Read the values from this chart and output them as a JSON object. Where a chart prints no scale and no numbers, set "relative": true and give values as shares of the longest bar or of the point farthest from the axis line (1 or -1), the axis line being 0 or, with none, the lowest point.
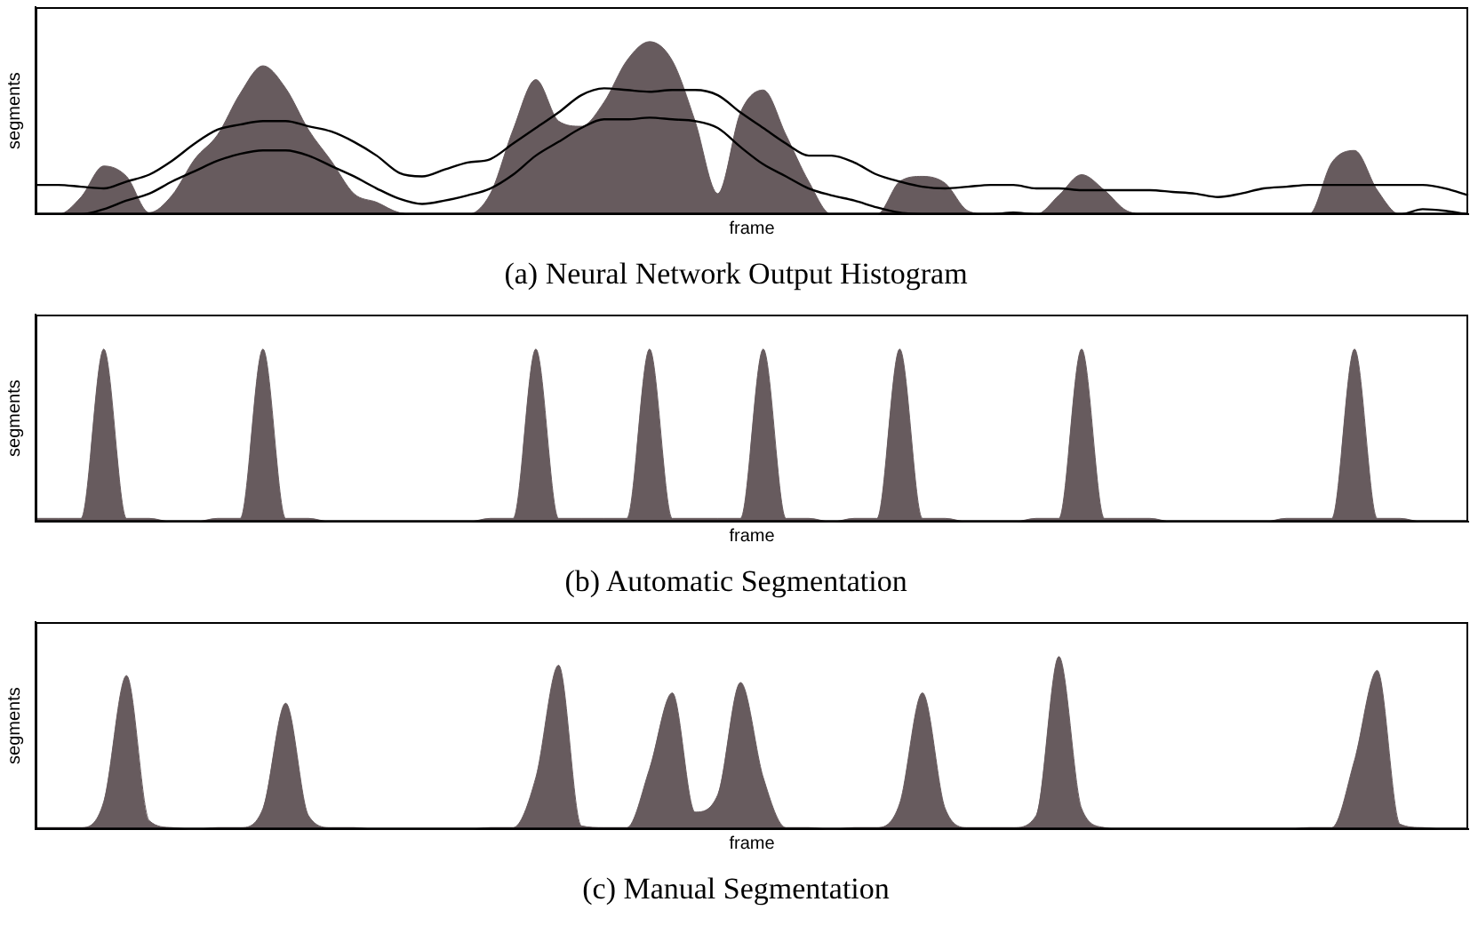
{
  "chart_data": [
    {
      "type": "area",
      "title": "(a) Neural Network Output Histogram",
      "xlabel": "frame",
      "ylabel": "segments",
      "relative": true,
      "tick_labels": false,
      "marker": "none",
      "categories": [
        null,
        null,
        null,
        null,
        null,
        null,
        null,
        null,
        null,
        null,
        null,
        null,
        null,
        null,
        null,
        null,
        null,
        null,
        null,
        null,
        null,
        null,
        null,
        null,
        null,
        null,
        null,
        null,
        null,
        null,
        null,
        null,
        null,
        null,
        null,
        null,
        null,
        null,
        null,
        null,
        null,
        null,
        null,
        null,
        null,
        null,
        null,
        null,
        null,
        null,
        null,
        null,
        null,
        null,
        null,
        null,
        null,
        null,
        null,
        null,
        null,
        null,
        null,
        null
      ],
      "series": [
        {
          "type": "area",
          "color": "#675b5e",
          "values": [
            0,
            0,
            0.1,
            0.28,
            0.22,
            0.01,
            0.11,
            0.32,
            0.46,
            0.7,
            0.86,
            0.73,
            0.49,
            0.31,
            0.12,
            0.07,
            0.01,
            0,
            0,
            0,
            0.12,
            0.49,
            0.78,
            0.54,
            0.51,
            0.65,
            0.89,
            1,
            0.89,
            0.54,
            0.12,
            0.59,
            0.72,
            0.46,
            0.19,
            0,
            0,
            0,
            0.19,
            0.22,
            0.18,
            0.02,
            0,
            0,
            0,
            0.11,
            0.23,
            0.14,
            0.02,
            0,
            0,
            0,
            0,
            0,
            0,
            0,
            0,
            0.3,
            0.37,
            0.14,
            0,
            0,
            0,
            0
          ]
        },
        {
          "type": "line",
          "color": "#000000",
          "values": [
            0.17,
            0.17,
            0.16,
            0.15,
            0.19,
            0.23,
            0.31,
            0.41,
            0.49,
            0.52,
            0.54,
            0.54,
            0.51,
            0.48,
            0.42,
            0.34,
            0.24,
            0.22,
            0.26,
            0.3,
            0.32,
            0.41,
            0.5,
            0.59,
            0.69,
            0.73,
            0.72,
            0.71,
            0.72,
            0.72,
            0.69,
            0.59,
            0.5,
            0.41,
            0.34,
            0.34,
            0.3,
            0.23,
            0.19,
            0.16,
            0.15,
            0.16,
            0.17,
            0.17,
            0.15,
            0.15,
            0.14,
            0.14,
            0.14,
            0.14,
            0.13,
            0.12,
            0.1,
            0.12,
            0.15,
            0.16,
            0.17,
            0.17,
            0.17,
            0.17,
            0.17,
            0.17,
            0.15,
            0.11
          ]
        },
        {
          "type": "line",
          "color": "#000000",
          "values": [
            0,
            0,
            0,
            0.03,
            0.08,
            0.12,
            0.19,
            0.25,
            0.31,
            0.35,
            0.37,
            0.37,
            0.34,
            0.28,
            0.22,
            0.15,
            0.09,
            0.06,
            0.08,
            0.11,
            0.15,
            0.23,
            0.34,
            0.42,
            0.5,
            0.55,
            0.55,
            0.56,
            0.55,
            0.54,
            0.5,
            0.39,
            0.29,
            0.22,
            0.15,
            0.11,
            0.08,
            0.04,
            0.01,
            0,
            0,
            0,
            0,
            0.01,
            0,
            0,
            0,
            0,
            0,
            0,
            0,
            0,
            0,
            0,
            0,
            0,
            0,
            0,
            0,
            0,
            0,
            0.03,
            0.02,
            0
          ]
        }
      ]
    },
    {
      "type": "area",
      "title": "(b) Automatic Segmentation",
      "xlabel": "frame",
      "ylabel": "segments",
      "relative": true,
      "tick_labels": false,
      "marker": "none",
      "color": "#675b5e",
      "categories": [
        null,
        null,
        null,
        null,
        null,
        null,
        null,
        null,
        null,
        null,
        null,
        null,
        null,
        null,
        null,
        null,
        null,
        null,
        null,
        null,
        null,
        null,
        null,
        null,
        null,
        null,
        null,
        null,
        null,
        null,
        null,
        null,
        null,
        null,
        null,
        null,
        null,
        null,
        null,
        null,
        null,
        null,
        null,
        null,
        null,
        null,
        null,
        null,
        null,
        null,
        null,
        null,
        null,
        null,
        null,
        null,
        null,
        null,
        null,
        null,
        null,
        null,
        null,
        null
      ],
      "values": [
        0.02,
        0.02,
        0.02,
        1,
        0.02,
        0.02,
        0,
        0,
        0.02,
        0.02,
        1,
        0.02,
        0.02,
        0,
        0,
        0,
        0,
        0,
        0,
        0,
        0.02,
        0.02,
        1,
        0.02,
        0.02,
        0.02,
        0.02,
        1,
        0.02,
        0.02,
        0.02,
        0.02,
        1,
        0.02,
        0.02,
        0,
        0.02,
        0.02,
        1,
        0.02,
        0.02,
        0,
        0,
        0,
        0.02,
        0.02,
        1,
        0.02,
        0.02,
        0.02,
        0,
        0,
        0,
        0,
        0,
        0.02,
        0.02,
        0.02,
        1,
        0.02,
        0.02,
        0,
        0,
        0
      ]
    },
    {
      "type": "area",
      "title": "(c) Manual Segmentation",
      "xlabel": "frame",
      "ylabel": "segments",
      "relative": true,
      "tick_labels": false,
      "marker": "none",
      "color": "#675b5e",
      "categories": [
        null,
        null,
        null,
        null,
        null,
        null,
        null,
        null,
        null,
        null,
        null,
        null,
        null,
        null,
        null,
        null,
        null,
        null,
        null,
        null,
        null,
        null,
        null,
        null,
        null,
        null,
        null,
        null,
        null,
        null,
        null,
        null,
        null,
        null,
        null,
        null,
        null,
        null,
        null,
        null,
        null,
        null,
        null,
        null,
        null,
        null,
        null,
        null,
        null,
        null,
        null,
        null,
        null,
        null,
        null,
        null,
        null,
        null,
        null,
        null,
        null,
        null,
        null,
        null
      ],
      "values": [
        0.01,
        0.01,
        0.01,
        0.16,
        0.89,
        0.05,
        0.01,
        0,
        0.01,
        0.01,
        0.12,
        0.73,
        0.08,
        0.01,
        0.01,
        0,
        0,
        0,
        0,
        0,
        0.01,
        0.01,
        0.3,
        0.95,
        0.02,
        0.01,
        0.01,
        0.35,
        0.79,
        0.1,
        0.2,
        0.85,
        0.3,
        0.01,
        0.01,
        0,
        0.01,
        0.01,
        0.15,
        0.79,
        0.12,
        0.01,
        0.01,
        0.01,
        0.08,
        1,
        0.12,
        0.01,
        0,
        0,
        0,
        0,
        0,
        0,
        0,
        0,
        0.01,
        0.01,
        0.4,
        0.92,
        0.03,
        0.01,
        0,
        0
      ]
    }
  ]
}
